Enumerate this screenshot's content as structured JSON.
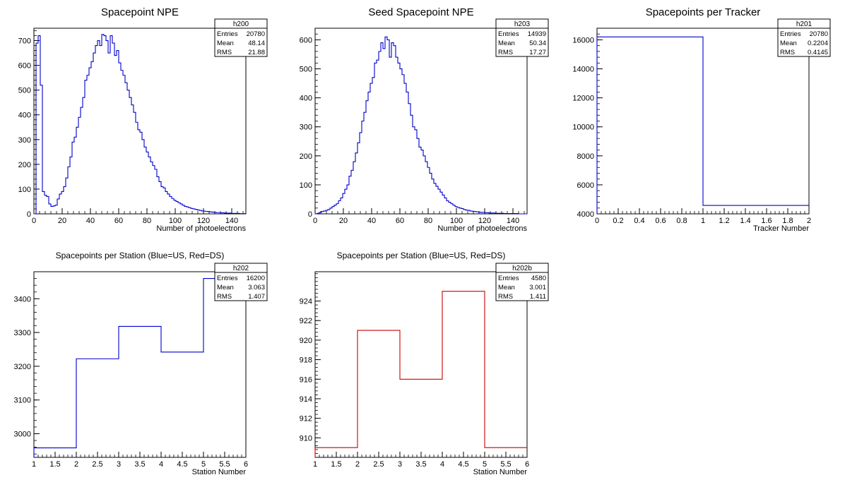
{
  "chart_data": [
    {
      "type": "histogram",
      "title": "Spacepoint NPE",
      "xlabel": "Number of photoelectrons",
      "ylabel": "",
      "xlim": [
        0,
        150
      ],
      "ylim": [
        0,
        750
      ],
      "x_ticks": [
        0,
        20,
        40,
        60,
        80,
        100,
        120,
        140
      ],
      "y_ticks": [
        0,
        100,
        200,
        300,
        400,
        500,
        600,
        700
      ],
      "line_color": "#0000cc",
      "bin_width": 1.5,
      "x_start": 0,
      "values": [
        0,
        690,
        720,
        520,
        90,
        75,
        70,
        40,
        30,
        32,
        35,
        60,
        80,
        90,
        110,
        145,
        190,
        230,
        290,
        310,
        350,
        390,
        430,
        470,
        540,
        560,
        590,
        615,
        650,
        680,
        700,
        680,
        725,
        720,
        700,
        650,
        720,
        690,
        640,
        660,
        610,
        580,
        560,
        530,
        500,
        470,
        440,
        410,
        370,
        340,
        330,
        300,
        270,
        250,
        230,
        210,
        195,
        180,
        150,
        130,
        110,
        105,
        90,
        80,
        70,
        62,
        55,
        50,
        45,
        40,
        35,
        30,
        28,
        25,
        22,
        20,
        18,
        16,
        14,
        12,
        11,
        10,
        9,
        8,
        7,
        6,
        5,
        5,
        4,
        4,
        3,
        3,
        3,
        2,
        2,
        2,
        2,
        1,
        1,
        1
      ],
      "stats": {
        "name": "h200",
        "rows": [
          [
            "Entries",
            "20780"
          ],
          [
            "Mean",
            "48.14"
          ],
          [
            "RMS",
            "21.88"
          ]
        ]
      }
    },
    {
      "type": "histogram",
      "title": "Seed Spacepoint NPE",
      "xlabel": "Number of photoelectrons",
      "ylabel": "",
      "xlim": [
        0,
        150
      ],
      "ylim": [
        0,
        640
      ],
      "x_ticks": [
        0,
        20,
        40,
        60,
        80,
        100,
        120,
        140
      ],
      "y_ticks": [
        0,
        100,
        200,
        300,
        400,
        500,
        600
      ],
      "line_color": "#0000cc",
      "bin_width": 1.5,
      "x_start": 0,
      "values": [
        0,
        2,
        5,
        8,
        10,
        12,
        15,
        20,
        25,
        30,
        35,
        45,
        55,
        70,
        85,
        100,
        130,
        150,
        180,
        210,
        245,
        280,
        320,
        350,
        390,
        420,
        450,
        470,
        520,
        530,
        560,
        590,
        570,
        610,
        600,
        540,
        590,
        580,
        540,
        520,
        500,
        480,
        450,
        420,
        380,
        340,
        300,
        290,
        260,
        230,
        220,
        200,
        180,
        160,
        140,
        120,
        105,
        95,
        85,
        75,
        65,
        55,
        45,
        40,
        35,
        30,
        25,
        22,
        20,
        18,
        15,
        13,
        12,
        10,
        9,
        8,
        7,
        6,
        5,
        5,
        4,
        4,
        3,
        3,
        3,
        2,
        2,
        2,
        2,
        1,
        1,
        1,
        1,
        1,
        1,
        1,
        0,
        0,
        0,
        0
      ],
      "stats": {
        "name": "h203",
        "rows": [
          [
            "Entries",
            "14939"
          ],
          [
            "Mean",
            "50.34"
          ],
          [
            "RMS",
            "17.27"
          ]
        ]
      }
    },
    {
      "type": "histogram",
      "title": "Spacepoints per Tracker",
      "xlabel": "Tracker Number",
      "ylabel": "",
      "xlim": [
        0,
        2
      ],
      "ylim": [
        4000,
        16800
      ],
      "x_ticks": [
        0,
        0.2,
        0.4,
        0.6,
        0.8,
        1,
        1.2,
        1.4,
        1.6,
        1.8,
        2
      ],
      "y_ticks": [
        4000,
        6000,
        8000,
        10000,
        12000,
        14000,
        16000
      ],
      "line_color": "#0000cc",
      "bin_width": 1,
      "x_start": 0,
      "values": [
        16200,
        4580
      ],
      "stats": {
        "name": "h201",
        "rows": [
          [
            "Entries",
            "20780"
          ],
          [
            "Mean",
            "0.2204"
          ],
          [
            "RMS",
            "0.4145"
          ]
        ]
      }
    },
    {
      "type": "histogram",
      "title": "Spacepoints per Station (Blue=US, Red=DS)",
      "xlabel": "Station Number",
      "ylabel": "",
      "xlim": [
        1,
        6
      ],
      "ylim": [
        2930,
        3480
      ],
      "x_ticks": [
        1,
        1.5,
        2,
        2.5,
        3,
        3.5,
        4,
        4.5,
        5,
        5.5,
        6
      ],
      "y_ticks": [
        3000,
        3100,
        3200,
        3300,
        3400
      ],
      "line_color": "#0000cc",
      "bin_width": 1,
      "x_start": 1,
      "values": [
        2958,
        3222,
        3318,
        3242,
        3460
      ],
      "stats": {
        "name": "h202",
        "rows": [
          [
            "Entries",
            "16200"
          ],
          [
            "Mean",
            "3.063"
          ],
          [
            "RMS",
            "1.407"
          ]
        ]
      }
    },
    {
      "type": "histogram",
      "title": "Spacepoints per Station (Blue=US, Red=DS)",
      "xlabel": "Station Number",
      "ylabel": "",
      "xlim": [
        1,
        6
      ],
      "ylim": [
        908,
        927
      ],
      "x_ticks": [
        1,
        1.5,
        2,
        2.5,
        3,
        3.5,
        4,
        4.5,
        5,
        5.5,
        6
      ],
      "y_ticks": [
        910,
        912,
        914,
        916,
        918,
        920,
        922,
        924
      ],
      "line_color": "#cc0000",
      "bin_width": 1,
      "x_start": 1,
      "values": [
        909,
        921,
        916,
        925,
        909
      ],
      "stats": {
        "name": "h202b",
        "rows": [
          [
            "Entries",
            "4580"
          ],
          [
            "Mean",
            "3.001"
          ],
          [
            "RMS",
            "1.411"
          ]
        ]
      }
    }
  ]
}
